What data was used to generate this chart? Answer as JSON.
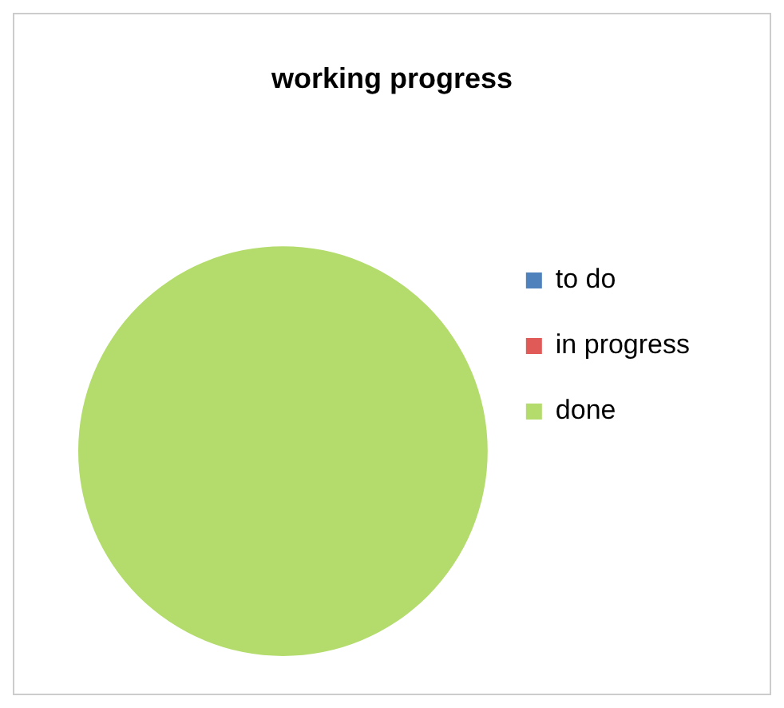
{
  "chart_data": {
    "type": "pie",
    "title": "working progress",
    "categories": [
      "to do",
      "in progress",
      "done"
    ],
    "values": [
      0,
      0,
      100
    ],
    "colors": [
      "#4f81bd",
      "#e05a57",
      "#b3dc6c"
    ],
    "legend": "right"
  }
}
